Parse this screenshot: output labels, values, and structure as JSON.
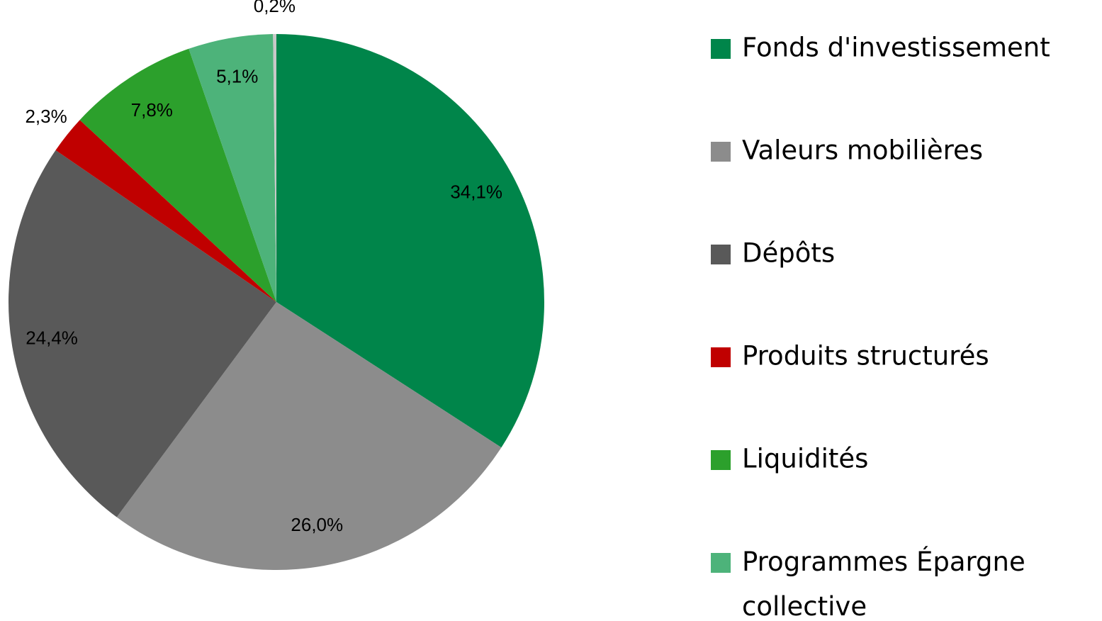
{
  "chart_data": {
    "type": "pie",
    "categories": [
      "Fonds d'investissement",
      "Valeurs mobilières",
      "Dépôts",
      "Produits structurés",
      "Liquidités",
      "Programmes Épargne collective",
      null
    ],
    "values": [
      34.1,
      26.0,
      24.4,
      2.3,
      7.8,
      5.1,
      0.2
    ],
    "value_labels": [
      "34,1%",
      "26,0%",
      "24,4%",
      "2,3%",
      "7,8%",
      "5,1%",
      "0,2%"
    ],
    "colors": [
      "#00854a",
      "#8c8c8c",
      "#595959",
      "#c00000",
      "#2ca02c",
      "#4db37a",
      "#c8c8c8"
    ],
    "legend": "right"
  }
}
